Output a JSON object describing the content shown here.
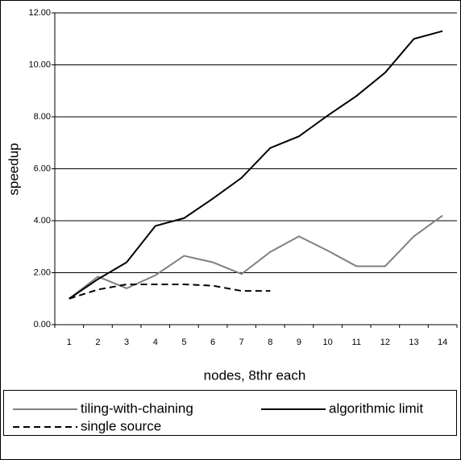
{
  "chart_data": {
    "type": "line",
    "x_label": "nodes, 8thr each",
    "y_label": "speedup",
    "x": [
      1,
      2,
      3,
      4,
      5,
      6,
      7,
      8,
      9,
      10,
      11,
      12,
      13,
      14
    ],
    "ylim": [
      0,
      12
    ],
    "yticks": [
      {
        "value": 0,
        "label": "0.00"
      },
      {
        "value": 2,
        "label": "2.00"
      },
      {
        "value": 4,
        "label": "4.00"
      },
      {
        "value": 6,
        "label": "6.00"
      },
      {
        "value": 8,
        "label": "8.00"
      },
      {
        "value": 10,
        "label": "10.00"
      },
      {
        "value": 12,
        "label": "12.00"
      }
    ],
    "grid": true,
    "legend": "bottom",
    "series": [
      {
        "name": "tiling-with-chaining",
        "color": "#808080",
        "dashed": false,
        "values": [
          1.0,
          1.85,
          1.4,
          1.9,
          2.65,
          2.4,
          1.95,
          2.8,
          3.4,
          2.85,
          2.25,
          2.25,
          3.4,
          4.2
        ]
      },
      {
        "name": "algorithmic limit",
        "color": "#000000",
        "dashed": false,
        "values": [
          1.0,
          1.75,
          2.4,
          3.8,
          4.1,
          4.85,
          5.65,
          6.8,
          7.25,
          8.05,
          8.8,
          9.7,
          11.0,
          11.3
        ]
      },
      {
        "name": "single source",
        "color": "#000000",
        "dashed": true,
        "values": [
          1.0,
          1.35,
          1.55,
          1.55,
          1.55,
          1.5,
          1.3,
          1.3,
          null,
          null,
          null,
          null,
          null,
          null
        ]
      }
    ]
  }
}
